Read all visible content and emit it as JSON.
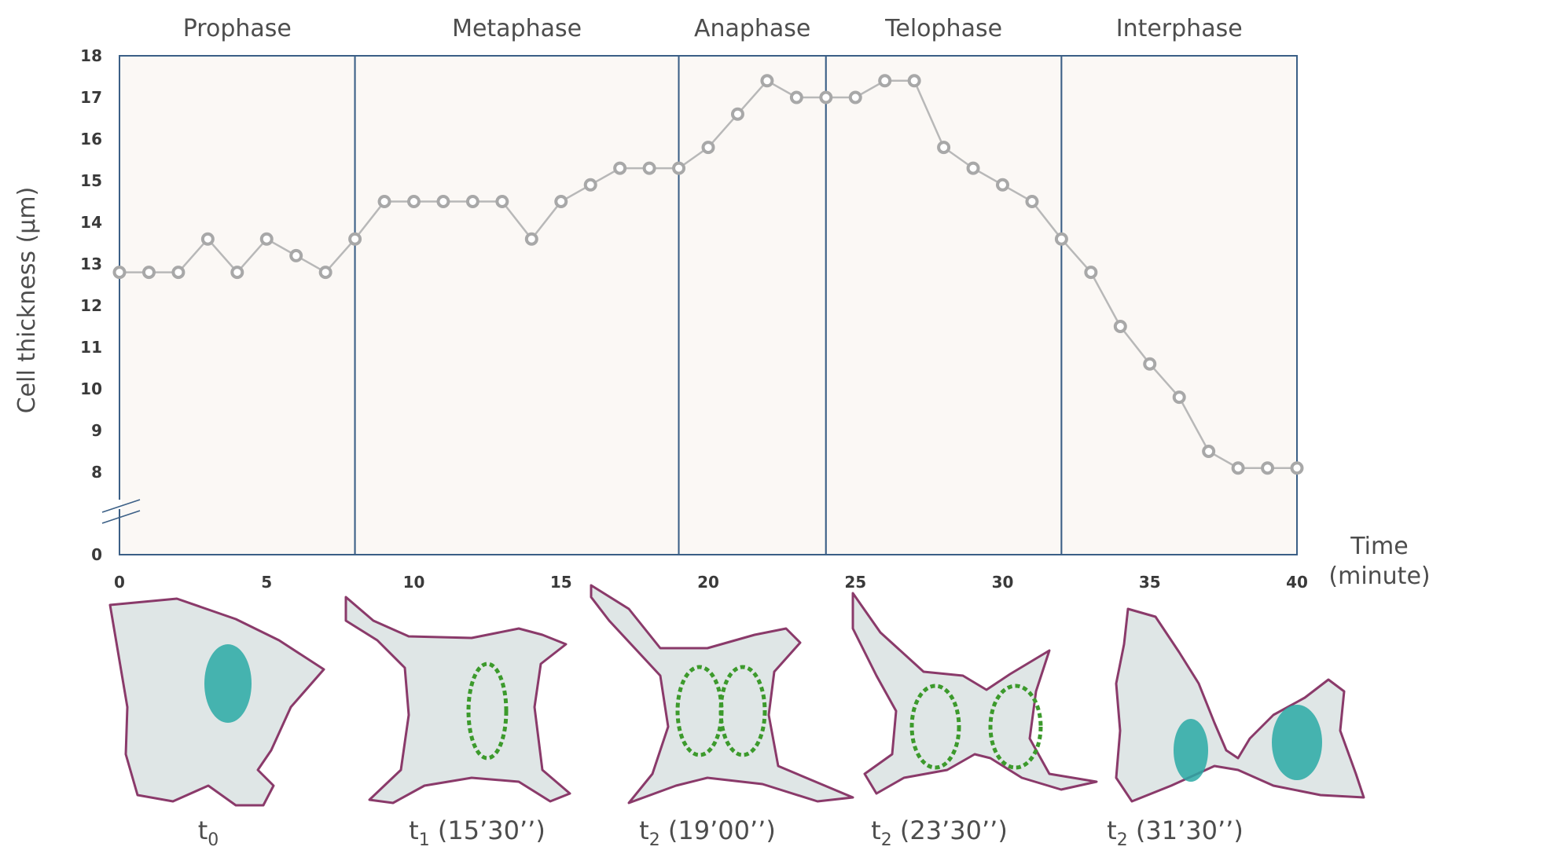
{
  "chart_data": {
    "type": "line",
    "ylabel": "Cell thickness (µm)",
    "xlabel": [
      "Time",
      "(minute)"
    ],
    "x_ticks": [
      0,
      5,
      10,
      15,
      20,
      25,
      30,
      35,
      40
    ],
    "y_ticks": [
      0,
      8,
      9,
      10,
      11,
      12,
      13,
      14,
      15,
      16,
      17,
      18
    ],
    "xlim": [
      0,
      40
    ],
    "ylim": [
      0,
      18
    ],
    "y_axis_break": [
      0,
      7.5
    ],
    "phases": [
      {
        "name": "Prophase",
        "start": 0,
        "end": 8
      },
      {
        "name": "Metaphase",
        "start": 8,
        "end": 19
      },
      {
        "name": "Anaphase",
        "start": 19,
        "end": 24
      },
      {
        "name": "Telophase",
        "start": 24,
        "end": 32
      },
      {
        "name": "Interphase",
        "start": 32,
        "end": 40
      }
    ],
    "series": [
      {
        "x": [
          0,
          1,
          2,
          3,
          4,
          5,
          6,
          7,
          8,
          9,
          10,
          11,
          12,
          13,
          14,
          15,
          16,
          17,
          18,
          19,
          20,
          21,
          22,
          23,
          24,
          25,
          26,
          27,
          28,
          29,
          30,
          31,
          32,
          33,
          34,
          35,
          36,
          37,
          38,
          39,
          40
        ],
        "values": [
          12.8,
          12.8,
          12.8,
          13.6,
          12.8,
          13.6,
          13.2,
          12.8,
          13.6,
          14.5,
          14.5,
          14.5,
          14.5,
          14.5,
          13.6,
          14.5,
          14.9,
          15.3,
          15.3,
          15.3,
          15.8,
          16.6,
          17.4,
          17.0,
          17.0,
          17.0,
          17.4,
          17.4,
          15.8,
          15.3,
          14.9,
          14.5,
          13.6,
          12.8,
          11.5,
          10.6,
          9.8,
          8.5,
          8.1,
          8.1,
          8.1
        ]
      }
    ],
    "grid": false,
    "colors": {
      "plot_background": "#fbf8f5",
      "phase_border": "#3b5f86",
      "line": "#b8b8b8",
      "marker": "#a8a8a8"
    }
  },
  "image_captions": [
    {
      "base": "t",
      "sub": "0",
      "suffix": ""
    },
    {
      "base": "t",
      "sub": "1",
      "suffix": " (15’30’’)"
    },
    {
      "base": "t",
      "sub": "2",
      "suffix": " (19’00’’)"
    },
    {
      "base": "t",
      "sub": "2",
      "suffix": " (23’30’’)"
    },
    {
      "base": "t",
      "sub": "2",
      "suffix": " (31’30’’)"
    }
  ]
}
